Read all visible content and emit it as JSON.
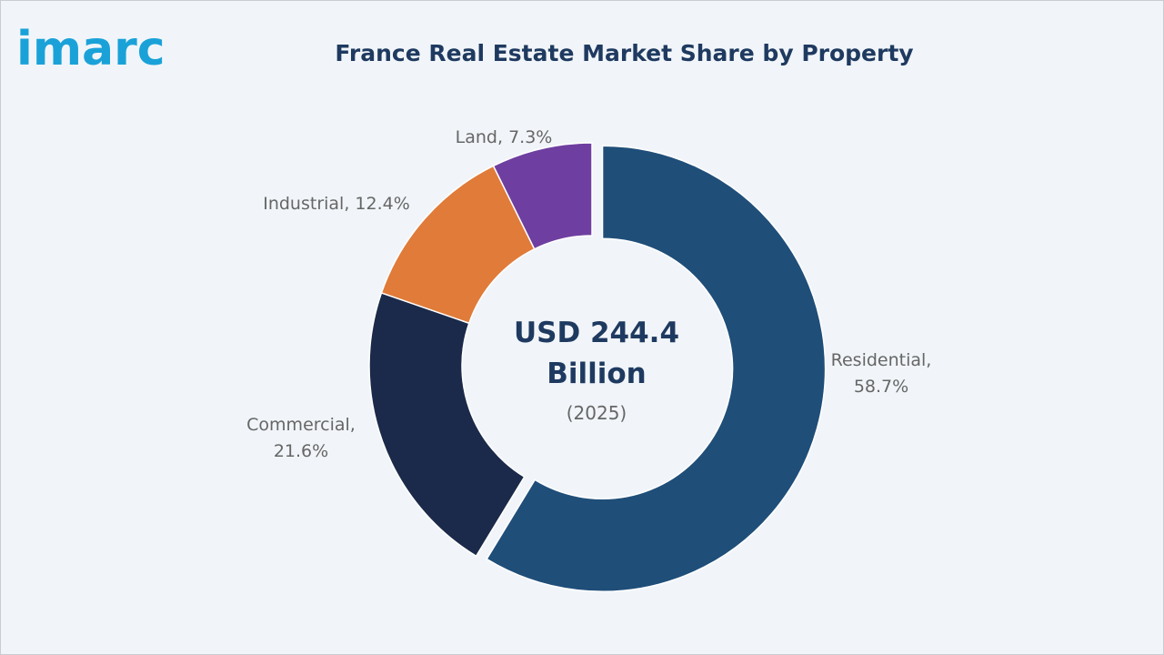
{
  "logo": {
    "text": "imarc",
    "color": "#1aa2d8"
  },
  "header": {
    "title": "France Real Estate Market Share by Property"
  },
  "chart_data": {
    "type": "pie",
    "variant": "donut",
    "title": "France Real Estate Market Share by Property",
    "center": {
      "line1": "USD 244.4",
      "line2": "Billion",
      "line3": "(2025)"
    },
    "slices": [
      {
        "label": "Residential",
        "value": 58.7,
        "label_line1": "Residential,",
        "label_line2": "58.7%",
        "color": "#1f4e79",
        "exploded": true
      },
      {
        "label": "Commercial",
        "value": 21.6,
        "label_line1": "Commercial,",
        "label_line2": "21.6%",
        "color": "#1b2a4a",
        "exploded": false
      },
      {
        "label": "Industrial",
        "value": 12.4,
        "label_line1": "Industrial, 12.4%",
        "label_line2": "",
        "color": "#e07b39",
        "exploded": false
      },
      {
        "label": "Land",
        "value": 7.3,
        "label_line1": "Land, 7.3%",
        "label_line2": "",
        "color": "#6e3fa0",
        "exploded": false
      }
    ]
  }
}
